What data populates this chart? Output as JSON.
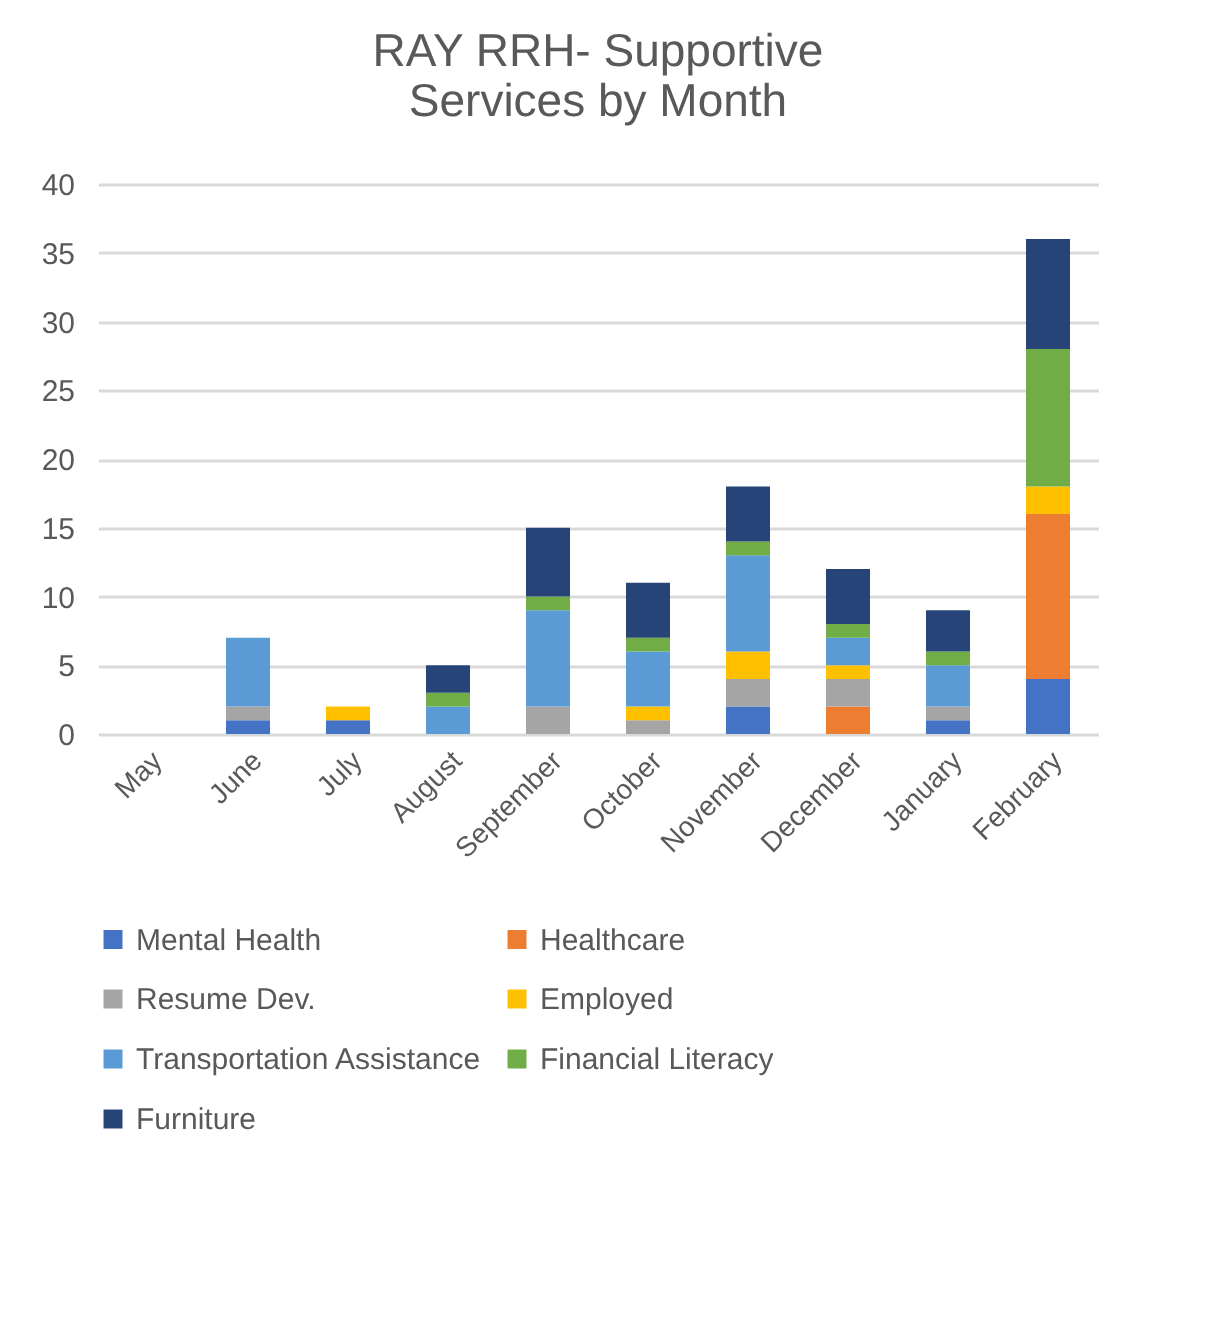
{
  "chart_data": {
    "type": "bar",
    "title": "RAY RRH- Supportive Services by Month",
    "stacked": true,
    "grid": "y",
    "legend": "bottom",
    "categories": [
      "May",
      "June",
      "July",
      "August",
      "September",
      "October",
      "November",
      "December",
      "January",
      "February"
    ],
    "ylim": [
      0,
      40
    ],
    "yticks": [
      0,
      5,
      10,
      15,
      20,
      25,
      30,
      35,
      40
    ],
    "series": [
      {
        "name": "Mental Health",
        "color": "#4472c4",
        "values": [
          0,
          1,
          1,
          0,
          0,
          0,
          2,
          0,
          1,
          4
        ]
      },
      {
        "name": "Healthcare",
        "color": "#ed7d31",
        "values": [
          0,
          0,
          0,
          0,
          0,
          0,
          0,
          2,
          0,
          12
        ]
      },
      {
        "name": "Resume Dev.",
        "color": "#a5a5a5",
        "values": [
          0,
          1,
          0,
          0,
          2,
          1,
          2,
          2,
          1,
          0
        ]
      },
      {
        "name": "Employed",
        "color": "#ffc000",
        "values": [
          0,
          0,
          1,
          0,
          0,
          1,
          2,
          1,
          0,
          2
        ]
      },
      {
        "name": "Transportation Assistance",
        "color": "#5b9bd5",
        "values": [
          0,
          5,
          0,
          2,
          7,
          4,
          7,
          2,
          3,
          0
        ]
      },
      {
        "name": "Financial Literacy",
        "color": "#70ad47",
        "values": [
          0,
          0,
          0,
          1,
          1,
          1,
          1,
          1,
          1,
          10
        ]
      },
      {
        "name": "Furniture",
        "color": "#264478",
        "values": [
          0,
          0,
          0,
          2,
          5,
          4,
          4,
          4,
          3,
          8
        ]
      }
    ]
  }
}
